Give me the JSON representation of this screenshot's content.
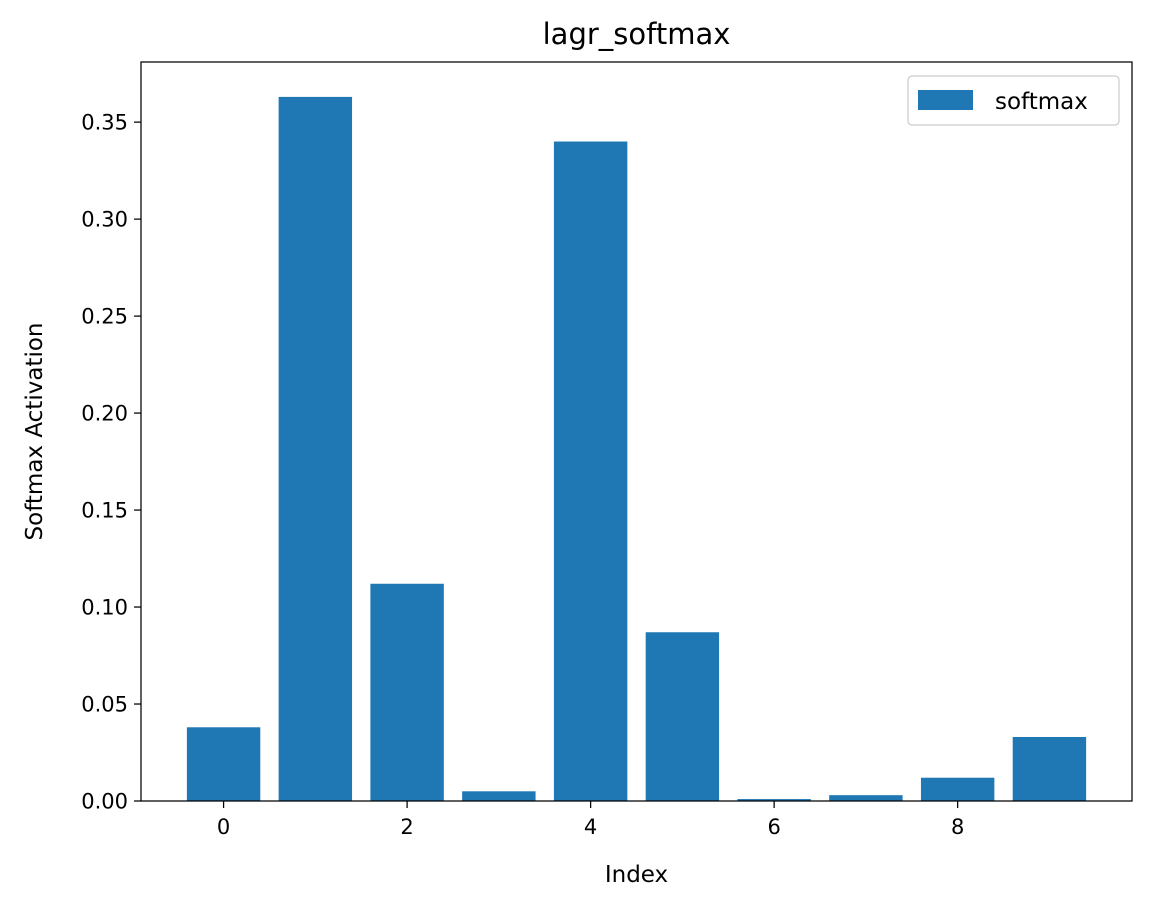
{
  "chart_data": {
    "type": "bar",
    "title": "lagr_softmax",
    "xlabel": "Index",
    "ylabel": "Softmax Activation",
    "categories": [
      0,
      1,
      2,
      3,
      4,
      5,
      6,
      7,
      8,
      9
    ],
    "series": [
      {
        "name": "softmax",
        "color": "#1f77b4",
        "values": [
          0.038,
          0.363,
          0.112,
          0.005,
          0.34,
          0.087,
          0.001,
          0.003,
          0.012,
          0.033
        ]
      }
    ],
    "xlim": [
      -0.9,
      9.9
    ],
    "ylim": [
      0,
      0.381
    ],
    "xticks": [
      0,
      2,
      4,
      6,
      8
    ],
    "xtick_labels": [
      "0",
      "2",
      "4",
      "6",
      "8"
    ],
    "yticks": [
      0,
      0.05,
      0.1,
      0.15,
      0.2,
      0.25,
      0.3,
      0.35
    ],
    "ytick_labels": [
      "0.00",
      "0.05",
      "0.10",
      "0.15",
      "0.20",
      "0.25",
      "0.30",
      "0.35"
    ],
    "grid": false,
    "legend_position": "top-right"
  }
}
